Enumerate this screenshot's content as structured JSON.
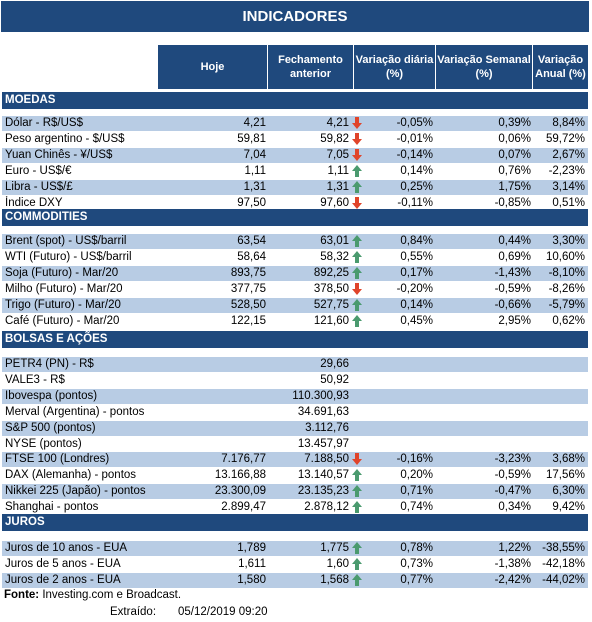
{
  "title": "INDICADORES",
  "headers": {
    "hoje": "Hoje",
    "fechamento": "Fechamento anterior",
    "var_diaria": "Variação diária (%)",
    "var_semanal": "Variação Semanal (%)",
    "var_anual": "Variação Anual (%)"
  },
  "colors": {
    "header_bg": "#1f497d",
    "row_shade": "#b8cce4",
    "arrow_down": "#e0442a",
    "arrow_up": "#4a9a6e"
  },
  "sections": [
    {
      "name": "MOEDAS",
      "rows": [
        {
          "name": "Dólar - R$/US$",
          "hoje": "4,21",
          "fech": "4,21",
          "arrow": "down",
          "dia": "-0,05%",
          "sem": "0,39%",
          "anual": "8,84%"
        },
        {
          "name": "Peso argentino - $/US$",
          "hoje": "59,81",
          "fech": "59,82",
          "arrow": "down",
          "dia": "-0,01%",
          "sem": "0,06%",
          "anual": "59,72%"
        },
        {
          "name": "Yuan Chinês - ¥/US$",
          "hoje": "7,04",
          "fech": "7,05",
          "arrow": "down",
          "dia": "-0,14%",
          "sem": "0,07%",
          "anual": "2,67%"
        },
        {
          "name": "Euro - US$/€",
          "hoje": "1,11",
          "fech": "1,11",
          "arrow": "up",
          "dia": "0,14%",
          "sem": "0,76%",
          "anual": "-2,23%"
        },
        {
          "name": "Libra - US$/£",
          "hoje": "1,31",
          "fech": "1,31",
          "arrow": "up",
          "dia": "0,25%",
          "sem": "1,75%",
          "anual": "3,14%"
        },
        {
          "name": "Índice DXY",
          "hoje": "97,50",
          "fech": "97,60",
          "arrow": "down",
          "dia": "-0,11%",
          "sem": "-0,85%",
          "anual": "0,51%"
        }
      ]
    },
    {
      "name": "COMMODITIES",
      "rows": [
        {
          "name": "Brent (spot) - US$/barril",
          "hoje": "63,54",
          "fech": "63,01",
          "arrow": "up",
          "dia": "0,84%",
          "sem": "0,44%",
          "anual": "3,30%"
        },
        {
          "name": "WTI (Futuro) - US$/barril",
          "hoje": "58,64",
          "fech": "58,32",
          "arrow": "up",
          "dia": "0,55%",
          "sem": "0,69%",
          "anual": "10,60%"
        },
        {
          "name": "Soja (Futuro) - Mar/20",
          "hoje": "893,75",
          "fech": "892,25",
          "arrow": "up",
          "dia": "0,17%",
          "sem": "-1,43%",
          "anual": "-8,10%"
        },
        {
          "name": "Milho (Futuro) - Mar/20",
          "hoje": "377,75",
          "fech": "378,50",
          "arrow": "down",
          "dia": "-0,20%",
          "sem": "-0,59%",
          "anual": "-8,26%"
        },
        {
          "name": "Trigo (Futuro) - Mar/20",
          "hoje": "528,50",
          "fech": "527,75",
          "arrow": "up",
          "dia": "0,14%",
          "sem": "-0,66%",
          "anual": "-5,79%"
        },
        {
          "name": "Café (Futuro) - Mar/20",
          "hoje": "122,15",
          "fech": "121,60",
          "arrow": "up",
          "dia": "0,45%",
          "sem": "2,95%",
          "anual": "0,62%"
        }
      ]
    },
    {
      "name": "BOLSAS E AÇÕES",
      "rows": [
        {
          "name": "PETR4 (PN) - R$",
          "hoje": "",
          "fech": "29,66",
          "arrow": "",
          "dia": "",
          "sem": "",
          "anual": ""
        },
        {
          "name": "VALE3 - R$",
          "hoje": "",
          "fech": "50,92",
          "arrow": "",
          "dia": "",
          "sem": "",
          "anual": ""
        },
        {
          "name": "Ibovespa (pontos)",
          "hoje": "",
          "fech": "110.300,93",
          "arrow": "",
          "dia": "",
          "sem": "",
          "anual": ""
        },
        {
          "name": "Merval (Argentina) - pontos",
          "hoje": "",
          "fech": "34.691,63",
          "arrow": "",
          "dia": "",
          "sem": "",
          "anual": ""
        },
        {
          "name": "S&P 500 (pontos)",
          "hoje": "",
          "fech": "3.112,76",
          "arrow": "",
          "dia": "",
          "sem": "",
          "anual": ""
        },
        {
          "name": "NYSE (pontos)",
          "hoje": "",
          "fech": "13.457,97",
          "arrow": "",
          "dia": "",
          "sem": "",
          "anual": ""
        },
        {
          "name": "FTSE 100 (Londres)",
          "hoje": "7.176,77",
          "fech": "7.188,50",
          "arrow": "down",
          "dia": "-0,16%",
          "sem": "-3,23%",
          "anual": "3,68%"
        },
        {
          "name": "DAX (Alemanha) - pontos",
          "hoje": "13.166,88",
          "fech": "13.140,57",
          "arrow": "up",
          "dia": "0,20%",
          "sem": "-0,59%",
          "anual": "17,56%"
        },
        {
          "name": "Nikkei 225 (Japão) - pontos",
          "hoje": "23.300,09",
          "fech": "23.135,23",
          "arrow": "up",
          "dia": "0,71%",
          "sem": "-0,47%",
          "anual": "6,30%"
        },
        {
          "name": "Shanghai - pontos",
          "hoje": "2.899,47",
          "fech": "2.878,12",
          "arrow": "up",
          "dia": "0,74%",
          "sem": "0,34%",
          "anual": "9,42%"
        }
      ]
    },
    {
      "name": "JUROS",
      "rows": [
        {
          "name": "Juros de 10 anos - EUA",
          "hoje": "1,789",
          "fech": "1,775",
          "arrow": "up",
          "dia": "0,78%",
          "sem": "1,22%",
          "anual": "-38,55%"
        },
        {
          "name": "Juros de 5 anos - EUA",
          "hoje": "1,611",
          "fech": "1,60",
          "arrow": "up",
          "dia": "0,73%",
          "sem": "-1,38%",
          "anual": "-42,18%"
        },
        {
          "name": "Juros de 2 anos - EUA",
          "hoje": "1,580",
          "fech": "1,568",
          "arrow": "up",
          "dia": "0,77%",
          "sem": "-2,42%",
          "anual": "-44,02%"
        }
      ]
    }
  ],
  "footer": {
    "fonte_label": "Fonte:",
    "fonte_text": " Investing.com e Broadcast.",
    "extraido_label": "Extraído:",
    "extraido_value": "05/12/2019 09:20"
  }
}
